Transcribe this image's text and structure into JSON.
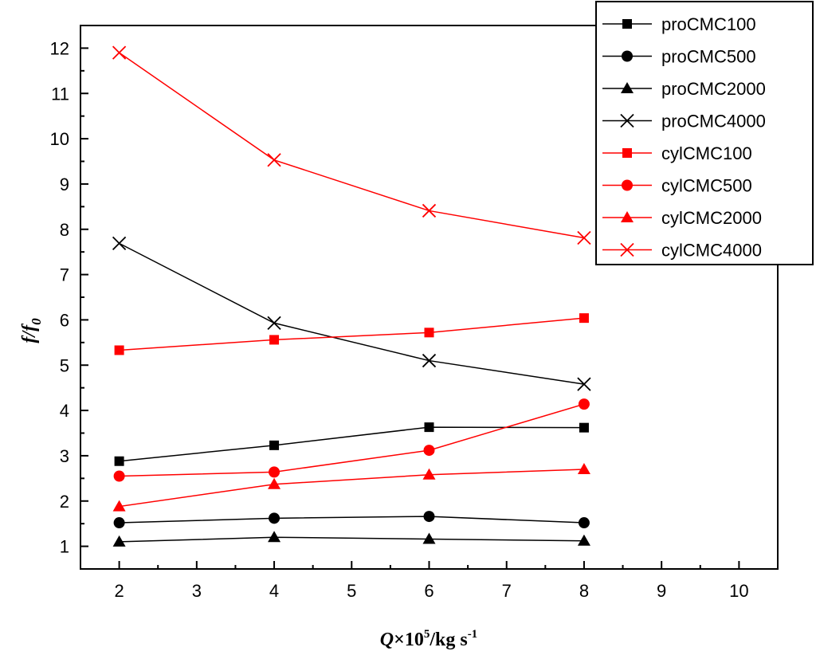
{
  "chart_data": {
    "type": "line",
    "xlabel": {
      "italic": "Q",
      "times": "×10",
      "sup": "5",
      "unit": "/kg s",
      "unit_sup": "-1"
    },
    "ylabel": {
      "base": "f/f",
      "sub": "0"
    },
    "xlim": [
      1.5,
      10.5
    ],
    "ylim": [
      0.5,
      12.5
    ],
    "xticks": [
      2,
      3,
      4,
      5,
      6,
      7,
      8,
      9,
      10
    ],
    "yticks": [
      1,
      2,
      3,
      4,
      5,
      6,
      7,
      8,
      9,
      10,
      11,
      12
    ],
    "x": [
      2,
      4,
      6,
      8
    ],
    "legend_position": "top-right",
    "series": [
      {
        "name": "proCMC100",
        "marker": "square",
        "color": "#000000",
        "values": [
          2.88,
          3.23,
          3.63,
          3.62
        ]
      },
      {
        "name": "proCMC500",
        "marker": "circle",
        "color": "#000000",
        "values": [
          1.52,
          1.62,
          1.66,
          1.52
        ]
      },
      {
        "name": "proCMC2000",
        "marker": "triangle",
        "color": "#000000",
        "values": [
          1.1,
          1.2,
          1.16,
          1.12
        ]
      },
      {
        "name": "proCMC4000",
        "marker": "x",
        "color": "#000000",
        "values": [
          7.69,
          5.93,
          5.1,
          4.58
        ]
      },
      {
        "name": "cylCMC100",
        "marker": "square",
        "color": "#ff0000",
        "values": [
          5.33,
          5.56,
          5.72,
          6.04
        ]
      },
      {
        "name": "cylCMC500",
        "marker": "circle",
        "color": "#ff0000",
        "values": [
          2.55,
          2.64,
          3.12,
          4.14
        ]
      },
      {
        "name": "cylCMC2000",
        "marker": "triangle",
        "color": "#ff0000",
        "values": [
          1.88,
          2.37,
          2.58,
          2.7
        ]
      },
      {
        "name": "cylCMC4000",
        "marker": "x",
        "color": "#ff0000",
        "values": [
          11.9,
          9.53,
          8.41,
          7.81
        ]
      }
    ]
  }
}
